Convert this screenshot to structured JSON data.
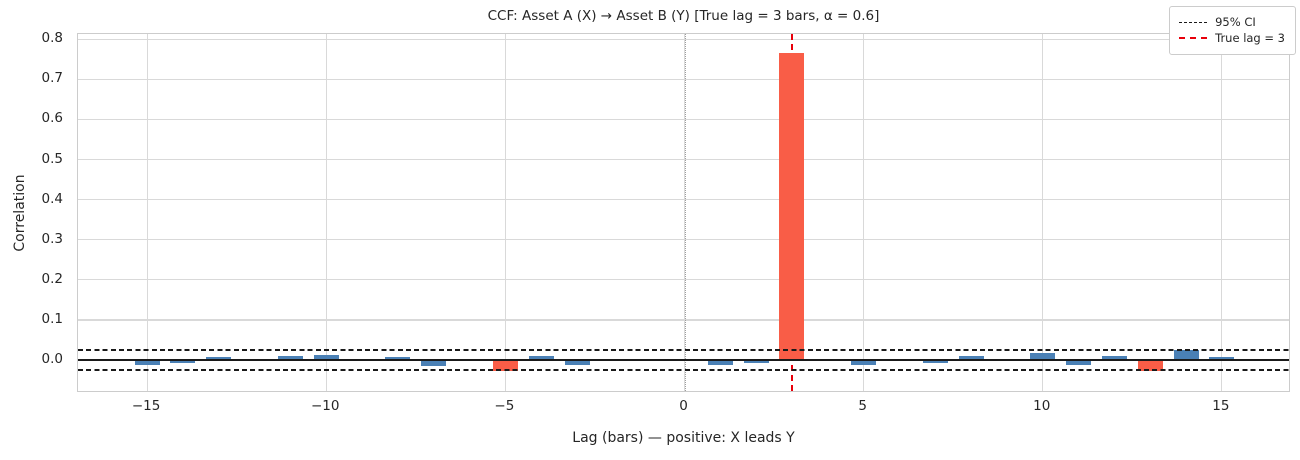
{
  "chart_data": {
    "type": "bar",
    "title": "CCF: Asset A (X) → Asset B (Y)  [True lag = 3 bars, α = 0.6]",
    "xlabel": "Lag (bars)  — positive: X leads Y",
    "ylabel": "Correlation",
    "x": [
      -16,
      -15,
      -14,
      -13,
      -12,
      -11,
      -10,
      -9,
      -8,
      -7,
      -6,
      -5,
      -4,
      -3,
      -2,
      -1,
      0,
      1,
      2,
      3,
      4,
      5,
      6,
      7,
      8,
      9,
      10,
      11,
      12,
      13,
      14,
      15,
      16
    ],
    "values": [
      0.001,
      -0.013,
      -0.007,
      0.008,
      0.001,
      0.011,
      0.013,
      0.002,
      0.008,
      -0.015,
      0.001,
      -0.026,
      0.011,
      -0.011,
      -0.002,
      -0.003,
      -0.002,
      -0.011,
      -0.008,
      0.765,
      0.001,
      -0.012,
      0.002,
      -0.007,
      0.011,
      0.002,
      0.018,
      -0.012,
      0.011,
      -0.026,
      0.024,
      0.007,
      0.001
    ],
    "ci_level": 0.025,
    "true_lag": 3,
    "peak_value": 0.765,
    "xlim": [
      -16.93,
      16.93
    ],
    "ylim": [
      -0.082,
      0.813
    ],
    "xtick_values": [
      -15,
      -10,
      -5,
      0,
      5,
      10,
      15
    ],
    "xtick_labels": [
      "−15",
      "−10",
      "−5",
      "0",
      "5",
      "10",
      "15"
    ],
    "ytick_values": [
      0.0,
      0.1,
      0.2,
      0.3,
      0.4,
      0.5,
      0.6,
      0.7,
      0.8
    ],
    "ytick_labels": [
      "0.0",
      "0.1",
      "0.2",
      "0.3",
      "0.4",
      "0.5",
      "0.6",
      "0.7",
      "0.8"
    ],
    "grid": true,
    "legend_position": "upper right",
    "legend": [
      {
        "label": "95% CI",
        "style": "dashed-black"
      },
      {
        "label": "True lag = 3",
        "style": "dashed-red"
      }
    ],
    "colors": {
      "bar_default": "#4a80b5",
      "bar_highlight": "#f95d47",
      "true_lag_line": "#e8000b",
      "ci_line": "#1a1a1a",
      "zero_line": "#1a1a1a",
      "gridline": "#d9d9d9"
    }
  }
}
